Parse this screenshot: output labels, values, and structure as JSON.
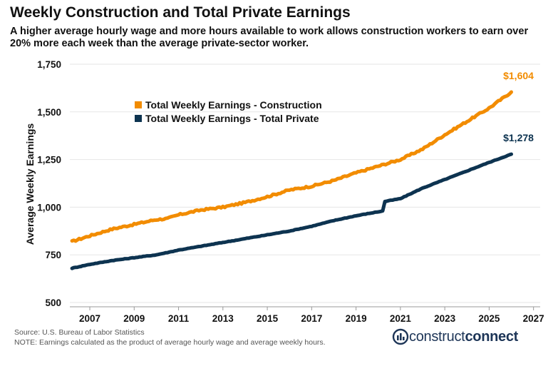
{
  "title": "Weekly Construction and Total Private Earnings",
  "subtitle": "A higher average hourly wage and more hours available to work allows construction workers to earn over 20% more each week than the average private-sector worker.",
  "source": "Source: U.S. Bureau of Labor Statistics",
  "note": "NOTE: Earnings calculated as the product of average hourly wage and average weekly hours.",
  "logo": {
    "prefix": "construct",
    "suffix": "connect",
    "icon": "construction-logo-icon"
  },
  "colors": {
    "construction": "#f28c00",
    "private": "#0d3350"
  },
  "chart_data": {
    "type": "line",
    "title": "Weekly Construction and Total Private Earnings",
    "xlabel": "",
    "ylabel": "Average Weekly Earnings",
    "xlim": [
      2006.1,
      2027.3
    ],
    "ylim": [
      500,
      1750
    ],
    "x_ticks": [
      "2007",
      "2009",
      "2011",
      "2013",
      "2015",
      "2017",
      "2019",
      "2021",
      "2023",
      "2025",
      "2027"
    ],
    "y_ticks": [
      "500",
      "750",
      "1,000",
      "1,250",
      "1,500",
      "1,750"
    ],
    "grid": "horizontal",
    "legend_position": "top-left",
    "series": [
      {
        "name": "Total Weekly Earnings - Construction",
        "color": "#f28c00",
        "end_label": "$1,604",
        "points": [
          [
            2006.2,
            820
          ],
          [
            2007.0,
            850
          ],
          [
            2008.0,
            885
          ],
          [
            2009.0,
            910
          ],
          [
            2010.0,
            935
          ],
          [
            2010.5,
            940
          ],
          [
            2011.0,
            960
          ],
          [
            2012.0,
            985
          ],
          [
            2013.0,
            1000
          ],
          [
            2014.0,
            1025
          ],
          [
            2015.0,
            1055
          ],
          [
            2016.0,
            1090
          ],
          [
            2017.0,
            1110
          ],
          [
            2018.0,
            1140
          ],
          [
            2019.0,
            1180
          ],
          [
            2020.0,
            1215
          ],
          [
            2021.0,
            1250
          ],
          [
            2022.0,
            1305
          ],
          [
            2023.0,
            1380
          ],
          [
            2024.0,
            1450
          ],
          [
            2025.0,
            1520
          ],
          [
            2026.0,
            1604
          ]
        ]
      },
      {
        "name": "Total Weekly Earnings - Total Private",
        "color": "#0d3350",
        "end_label": "$1,278",
        "points": [
          [
            2006.2,
            680
          ],
          [
            2007.0,
            700
          ],
          [
            2008.0,
            720
          ],
          [
            2009.0,
            735
          ],
          [
            2010.0,
            750
          ],
          [
            2011.0,
            775
          ],
          [
            2012.0,
            795
          ],
          [
            2013.0,
            815
          ],
          [
            2014.0,
            835
          ],
          [
            2015.0,
            855
          ],
          [
            2016.0,
            875
          ],
          [
            2017.0,
            900
          ],
          [
            2018.0,
            930
          ],
          [
            2019.0,
            955
          ],
          [
            2020.2,
            980
          ],
          [
            2020.3,
            1030
          ],
          [
            2021.0,
            1045
          ],
          [
            2022.0,
            1100
          ],
          [
            2023.0,
            1145
          ],
          [
            2024.0,
            1190
          ],
          [
            2025.0,
            1235
          ],
          [
            2026.0,
            1278
          ]
        ]
      }
    ]
  }
}
